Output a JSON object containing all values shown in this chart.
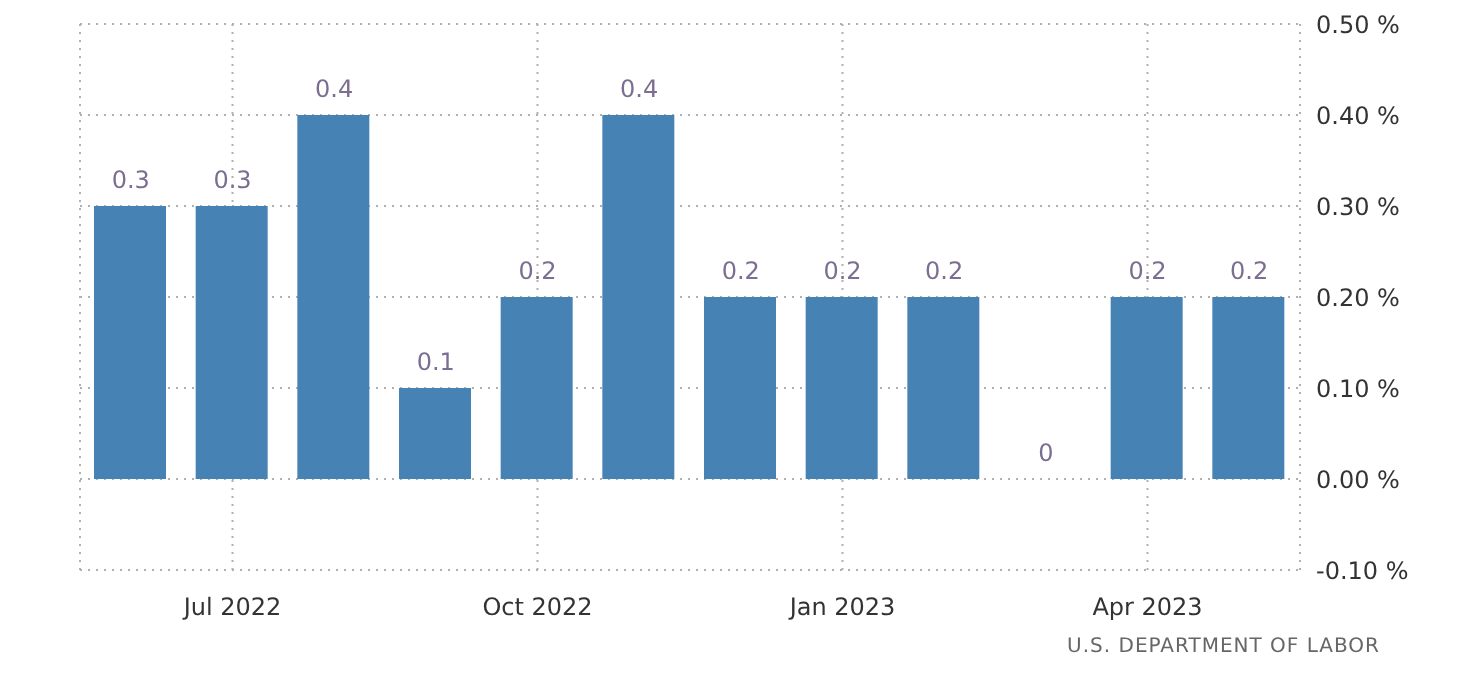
{
  "chart_data": {
    "type": "bar",
    "categories": [
      null,
      "Jul 2022",
      null,
      null,
      "Oct 2022",
      null,
      null,
      "Jan 2023",
      null,
      null,
      "Apr 2023",
      null
    ],
    "values": [
      0.3,
      0.3,
      0.4,
      0.1,
      0.2,
      0.4,
      0.2,
      0.2,
      0.2,
      0,
      0.2,
      0.2
    ],
    "color": "#4682b4",
    "ylim": [
      -0.1,
      0.5
    ],
    "yticks": [
      {
        "value": -0.1,
        "label": "-0.10 %"
      },
      {
        "value": 0,
        "label": "0.00 %"
      },
      {
        "value": 0.1,
        "label": "0.10 %"
      },
      {
        "value": 0.2,
        "label": "0.20 %"
      },
      {
        "value": 0.3,
        "label": "0.30 %"
      },
      {
        "value": 0.4,
        "label": "0.40 %"
      },
      {
        "value": 0.5,
        "label": "0.50 %"
      }
    ],
    "data_labels": true,
    "grid": true,
    "annotations": [
      "U.S. DEPARTMENT OF LABOR"
    ]
  }
}
